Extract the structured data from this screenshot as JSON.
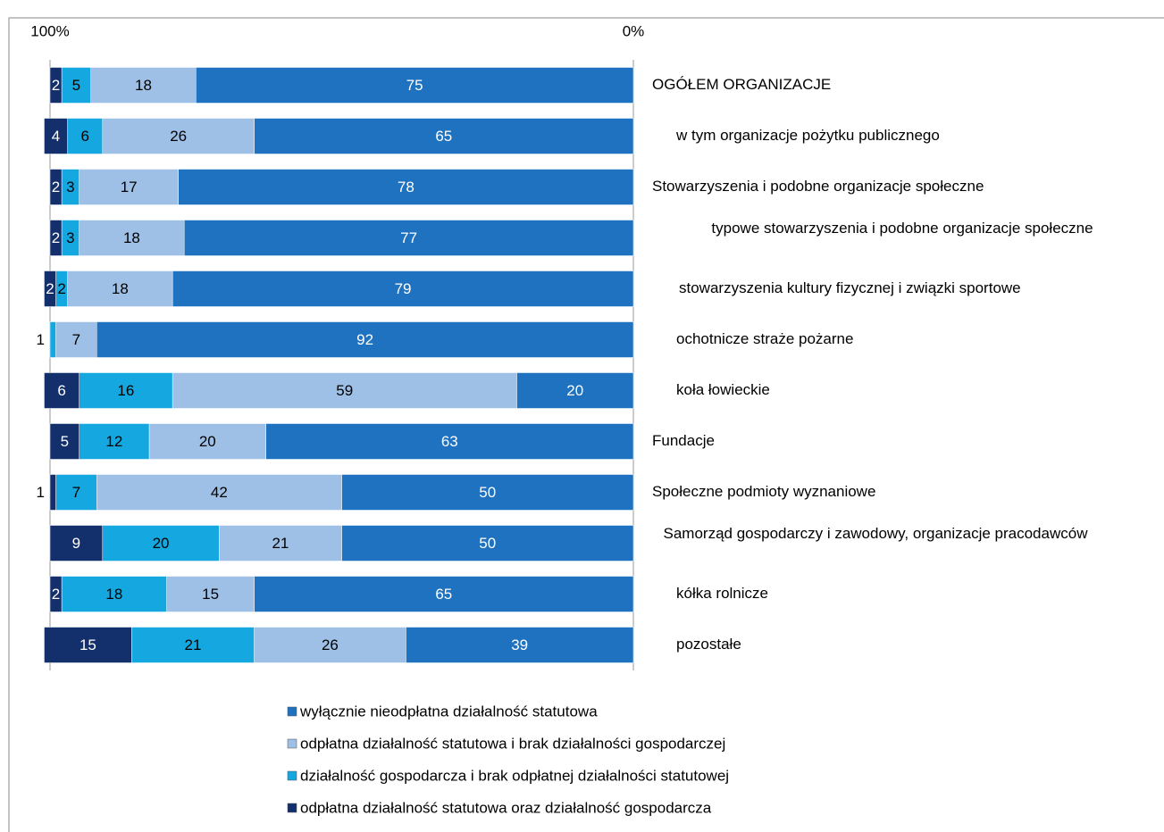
{
  "chart_data": {
    "type": "stacked_bar_horizontal",
    "categories": [
      "OGÓŁEM ORGANIZACJE",
      "w tym organizacje pożytku publicznego",
      "Stowarzyszenia i podobne organizacje społeczne",
      "typowe stowarzyszenia i podobne organizacje społeczne",
      "stowarzyszenia kultury fizycznej i związki sportowe",
      "ochotnicze straże pożarne",
      "koła łowieckie",
      "Fundacje",
      "Społeczne podmioty wyznaniowe",
      "Samorząd gospodarczy i zawodowy, organizacje pracodawców",
      "kółka rolnicze",
      "pozostałe"
    ],
    "series": [
      {
        "name": "wyłącznie nieodpłatna działalność statutowa",
        "color": "#1f72c0",
        "values": [
          75,
          65,
          78,
          77,
          79,
          92,
          20,
          63,
          50,
          50,
          65,
          39
        ]
      },
      {
        "name": "odpłatna działalność statutowa i brak działalności gospodarczej",
        "color": "#9ebfe6",
        "values": [
          18,
          26,
          17,
          18,
          18,
          7,
          59,
          20,
          42,
          21,
          15,
          26
        ]
      },
      {
        "name": "działalność gospodarcza i brak odpłatnej działalności statutowej",
        "color": "#15a8e0",
        "values": [
          5,
          6,
          3,
          3,
          2,
          1,
          16,
          12,
          7,
          20,
          18,
          21
        ]
      },
      {
        "name": "odpłatna działalność statutowa oraz działalność gospodarcza",
        "color": "#14306c",
        "values": [
          2,
          4,
          2,
          2,
          2,
          0,
          6,
          5,
          1,
          9,
          2,
          15
        ]
      }
    ],
    "xlim": [
      100,
      0
    ],
    "xticks": [
      {
        "value": 100,
        "label": "100%"
      },
      {
        "value": 0,
        "label": "0%"
      }
    ]
  }
}
